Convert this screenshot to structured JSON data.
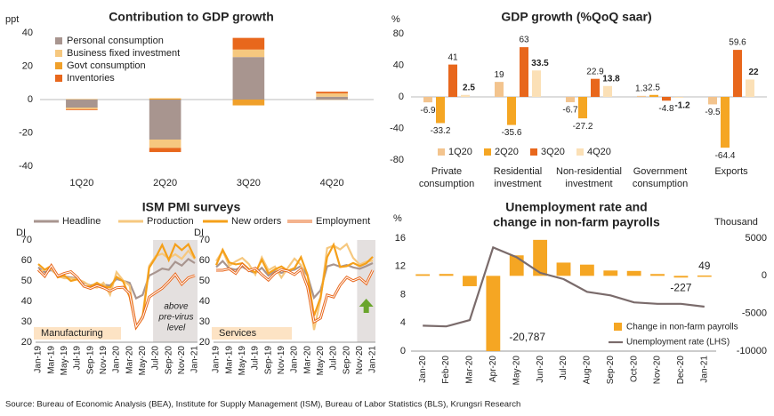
{
  "chart_data": [
    {
      "type": "stacked_bar",
      "title": "Contribution to GDP growth",
      "ylabel": "ppt",
      "categories": [
        "1Q20",
        "2Q20",
        "3Q20",
        "4Q20"
      ],
      "ylim": [
        -40,
        40
      ],
      "yticks": [
        -40,
        -20,
        0,
        20,
        40
      ],
      "legend": "upper left",
      "series": [
        {
          "name": "Personal consumption",
          "color": "#a8958f",
          "values": [
            -4.8,
            -24,
            25.5,
            1.7
          ]
        },
        {
          "name": "Business fixed investment",
          "color": "#f6c87f",
          "values": [
            -1,
            -5,
            4.5,
            2
          ]
        },
        {
          "name": "Govt consumption",
          "color": "#f0a02a",
          "values": [
            0.2,
            0.7,
            -3.5,
            -0.1
          ]
        },
        {
          "name": "Inventories",
          "color": "#e8671c",
          "values": [
            -0.5,
            -2.5,
            7,
            1
          ]
        }
      ]
    },
    {
      "type": "bar",
      "title": "GDP growth (%QoQ saar)",
      "ylabel": "%",
      "categories": [
        [
          "Private",
          "consumption"
        ],
        [
          "Residential",
          "investment"
        ],
        [
          "Non-residential",
          "investment"
        ],
        [
          "Government",
          "consumption"
        ],
        [
          "Exports"
        ]
      ],
      "ylim": [
        -80,
        80
      ],
      "yticks": [
        -80,
        -40,
        0,
        40,
        80
      ],
      "legend": "lower left",
      "series": [
        {
          "name": "1Q20",
          "color": "#f3c48e",
          "values": [
            -6.9,
            19,
            -6.7,
            1.3,
            -9.5
          ]
        },
        {
          "name": "2Q20",
          "color": "#f5a623",
          "values": [
            -33.2,
            -35.6,
            -27.2,
            2.5,
            -64.4
          ]
        },
        {
          "name": "3Q20",
          "color": "#e8671c",
          "values": [
            41,
            63,
            22.9,
            -4.8,
            59.6
          ]
        },
        {
          "name": "4Q20",
          "color": "#fbe0b6",
          "values": [
            2.5,
            33.5,
            13.8,
            -1.2,
            22
          ]
        }
      ]
    },
    {
      "type": "line",
      "title": "ISM PMI surveys",
      "ylabel": "DI",
      "ylim": [
        20,
        70
      ],
      "yticks": [
        20,
        30,
        40,
        50,
        60,
        70
      ],
      "x": [
        "Jan-19",
        null,
        "Mar-19",
        null,
        "May-19",
        null,
        "Jul-19",
        null,
        "Sep-19",
        null,
        "Nov-19",
        null,
        "Jan-20",
        null,
        "Mar-20",
        null,
        "May-20",
        null,
        "Jul-20",
        null,
        "Sep-20",
        null,
        "Nov-20",
        null,
        "Jan-21"
      ],
      "series": [
        {
          "name": "Headline",
          "color": "#a8958f"
        },
        {
          "name": "Production",
          "color": "#f6c87f"
        },
        {
          "name": "New orders",
          "color": "#f5a01a"
        },
        {
          "name": "Employment",
          "color": "#e8671c"
        }
      ],
      "panels": [
        {
          "label": "Manufacturing",
          "annotation": [
            "above",
            "pre-virus",
            "level"
          ],
          "values": [
            [
              56.6,
              54.2,
              55.3,
              52.8,
              52.1,
              51.7,
              51.2,
              49.1,
              47.8,
              48.3,
              48.1,
              47.8,
              50.9,
              50.1,
              49.1,
              41.5,
              43.1,
              52.6,
              54.2,
              56,
              55.4,
              59.3,
              57.5,
              60.7,
              58.7
            ],
            [
              54.5,
              55.5,
              55.8,
              52.3,
              51.3,
              51.3,
              50.8,
              49.5,
              47.3,
              46.7,
              49.1,
              43.2,
              54.3,
              50.3,
              47.7,
              27.5,
              33.2,
              57.3,
              62.1,
              63.3,
              61,
              63,
              60.8,
              64.8,
              60.7
            ],
            [
              58.2,
              55.5,
              57.4,
              51.7,
              52.7,
              50,
              50.8,
              47.2,
              47.3,
              49.1,
              47.2,
              46.8,
              52,
              49.8,
              42.2,
              27.1,
              31.8,
              56.4,
              61.5,
              67.6,
              60.2,
              67.9,
              65.1,
              67.9,
              61.1
            ],
            [
              55.5,
              52.3,
              57.5,
              52.4,
              53.7,
              54.5,
              51.7,
              47.4,
              46.3,
              47.7,
              46.6,
              45.1,
              46.6,
              46.9,
              43.8,
              27.5,
              32.1,
              42.1,
              44.3,
              46.4,
              49.6,
              53.2,
              48.4,
              51.5,
              52.6
            ]
          ]
        },
        {
          "label": "Services",
          "values": [
            [
              56.7,
              59.7,
              56.1,
              55.5,
              56.9,
              55.1,
              53.7,
              56.4,
              52.6,
              54.7,
              53.9,
              55,
              55.5,
              57.3,
              52.5,
              41.8,
              45.4,
              57.1,
              58.1,
              56.9,
              57.8,
              56.6,
              55.9,
              57.2,
              58.7
            ],
            [
              59.7,
              64.7,
              57.4,
              59.5,
              61.2,
              58.2,
              53.1,
              61.5,
              55.2,
              57,
              51.6,
              56.5,
              60.9,
              57.8,
              48,
              26,
              41,
              66,
              67.2,
              65.4,
              68,
              61.2,
              58,
              59.4,
              59.9
            ],
            [
              57.7,
              65.2,
              59,
              58.1,
              58.6,
              55.8,
              54.1,
              60.3,
              53.7,
              55.6,
              57.1,
              54.9,
              56.2,
              61.6,
              52.9,
              32.9,
              41.9,
              61.6,
              67.7,
              56.8,
              57.2,
              58.8,
              57.2,
              58.6,
              61.8
            ],
            [
              55.2,
              55.2,
              55.9,
              53.7,
              58.1,
              55,
              56.2,
              53.1,
              50.4,
              53.7,
              55.5,
              54.8,
              53.1,
              55.6,
              47,
              30,
              31.8,
              43.1,
              42.1,
              47.9,
              51.8,
              50.1,
              51.5,
              48.7,
              55.2
            ]
          ]
        }
      ]
    },
    {
      "type": "bar_line",
      "title": [
        "Unemployment rate and",
        "change in non-farm payrolls"
      ],
      "ylabel": "%",
      "y2label": "Thousand",
      "x": [
        "Jan-20",
        "Feb-20",
        "Mar-20",
        "Apr-20",
        "May-20",
        "Jun-20",
        "Jul-20",
        "Aug-20",
        "Sep-20",
        "Oct-20",
        "Nov-20",
        "Dec-20",
        "Jan-21"
      ],
      "ylim": [
        0,
        16
      ],
      "yticks": [
        0,
        4,
        8,
        12,
        16
      ],
      "y2lim": [
        -10000,
        5000
      ],
      "y2ticks": [
        {
          "value": -10000,
          "label": "-10000"
        },
        -5000,
        0,
        5000
      ],
      "legend": "lower right",
      "series": [
        {
          "name": "Change in non-farm payrolls",
          "color": "#f5a623",
          "axis": "y2",
          "values": [
            214,
            251,
            -1373,
            -20787,
            2725,
            4781,
            1761,
            1493,
            711,
            654,
            245,
            -227,
            49
          ],
          "value_labels": [
            null,
            null,
            null,
            "-20,787",
            null,
            null,
            null,
            null,
            null,
            null,
            null,
            "-227",
            "49"
          ]
        },
        {
          "name": "Unemployment rate (LHS)",
          "color": "#7a6b6b",
          "values": [
            3.6,
            3.5,
            4.4,
            14.7,
            13.3,
            11.1,
            10.2,
            8.4,
            7.9,
            6.9,
            6.7,
            6.7,
            6.3
          ]
        }
      ]
    }
  ],
  "source": "Source: Bureau of Economic Analysis (BEA), Institute for Supply Management (ISM), Bureau of Labor Statistics (BLS), Krungsri Research"
}
